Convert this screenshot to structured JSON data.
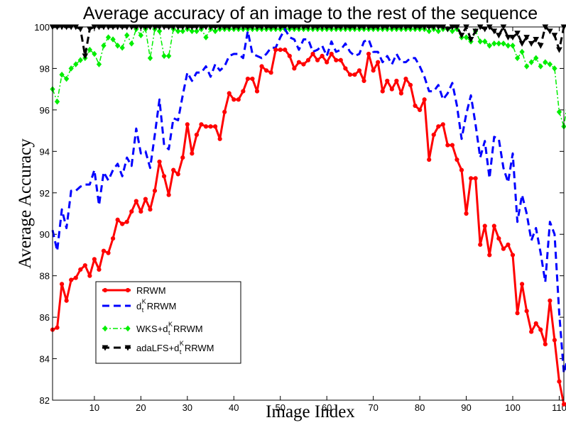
{
  "chart_data": {
    "type": "line",
    "title": "Average accuracy of an image to the rest of the sequence",
    "xlabel": "Image Index",
    "ylabel": "Average Accuracy",
    "xlim": [
      1,
      111
    ],
    "ylim": [
      82,
      100
    ],
    "xticks": [
      10,
      20,
      30,
      40,
      50,
      60,
      70,
      80,
      90,
      100,
      110
    ],
    "yticks": [
      82,
      84,
      86,
      88,
      90,
      92,
      94,
      96,
      98,
      100
    ],
    "grid": false,
    "legend_position": "bottom-left",
    "series": [
      {
        "name": "RRWM",
        "legend": {
          "base": "RRWM"
        },
        "color": "#ff0000",
        "style": "solid-dots",
        "y": [
          85.4,
          85.5,
          87.6,
          86.8,
          87.8,
          87.9,
          88.3,
          88.5,
          88.0,
          88.8,
          88.3,
          89.2,
          89.1,
          89.8,
          90.7,
          90.5,
          90.6,
          91.1,
          91.6,
          91.1,
          91.7,
          91.2,
          92.1,
          93.5,
          92.8,
          91.9,
          93.1,
          92.9,
          93.7,
          95.3,
          93.9,
          94.8,
          95.3,
          95.2,
          95.2,
          95.2,
          94.6,
          95.9,
          96.8,
          96.5,
          96.5,
          96.9,
          97.5,
          97.5,
          96.9,
          98.1,
          97.9,
          97.8,
          98.9,
          98.9,
          98.9,
          98.6,
          98.0,
          98.3,
          98.2,
          98.4,
          98.7,
          98.4,
          98.6,
          98.3,
          98.7,
          98.4,
          98.4,
          98.0,
          97.7,
          97.7,
          97.9,
          97.4,
          98.7,
          97.9,
          98.3,
          96.9,
          97.4,
          97.0,
          97.4,
          96.8,
          97.5,
          97.2,
          96.2,
          96.0,
          96.5,
          93.6,
          94.8,
          95.2,
          95.3,
          94.3,
          94.3,
          93.6,
          93.1,
          91.0,
          92.7,
          92.7,
          89.5,
          90.4,
          89.0,
          90.4,
          89.8,
          89.3,
          89.5,
          89.0,
          86.2,
          87.6,
          86.3,
          85.3,
          85.7,
          85.4,
          84.7,
          86.8,
          84.9,
          82.9,
          81.8,
          81.9
        ]
      },
      {
        "name": "d_t^K RRWM",
        "legend": {
          "base": "d",
          "sub": "t",
          "sup": "K",
          "rest": " RRWM"
        },
        "color": "#0000ff",
        "style": "dashed",
        "y": [
          90.2,
          89.2,
          91.2,
          90.3,
          92.1,
          92.1,
          92.3,
          92.4,
          92.4,
          93.1,
          91.4,
          93.0,
          92.6,
          93.1,
          93.4,
          92.8,
          93.7,
          93.3,
          95.1,
          93.9,
          94.0,
          93.2,
          94.8,
          96.5,
          94.3,
          94.1,
          95.6,
          95.5,
          96.7,
          97.8,
          97.4,
          97.8,
          97.8,
          98.1,
          97.6,
          98.2,
          97.9,
          98.1,
          98.6,
          98.7,
          98.7,
          98.5,
          99.8,
          98.7,
          98.6,
          98.5,
          98.7,
          99.0,
          99.0,
          99.5,
          99.9,
          99.5,
          99.4,
          98.9,
          99.4,
          99.4,
          98.8,
          98.9,
          99.1,
          98.6,
          99.3,
          98.8,
          98.9,
          99.2,
          98.8,
          98.6,
          98.7,
          99.3,
          99.4,
          98.8,
          98.8,
          98.3,
          98.6,
          98.2,
          98.7,
          98.3,
          98.3,
          98.5,
          98.5,
          98.1,
          97.6,
          96.9,
          96.9,
          97.2,
          96.5,
          96.8,
          97.3,
          96.2,
          94.6,
          95.8,
          96.7,
          95.3,
          93.7,
          94.5,
          92.7,
          94.7,
          94.6,
          93.2,
          92.5,
          93.9,
          90.6,
          91.9,
          91.0,
          89.7,
          90.3,
          89.1,
          87.7,
          90.6,
          90.0,
          86.2,
          83.3,
          84.2
        ]
      },
      {
        "name": "WKS+d_t^K RRWM",
        "legend": {
          "base": "WKS+d",
          "sub": "t",
          "sup": "K",
          "rest": "RRWM"
        },
        "color": "#00ee00",
        "style": "dashdot-diamonds",
        "y": [
          97.0,
          96.4,
          97.7,
          97.5,
          98.0,
          98.2,
          98.4,
          98.5,
          98.9,
          98.7,
          98.2,
          99.1,
          99.5,
          99.4,
          99.1,
          99.0,
          99.6,
          99.2,
          99.9,
          99.6,
          99.9,
          98.5,
          99.9,
          99.8,
          98.6,
          98.6,
          99.9,
          99.8,
          99.8,
          99.9,
          99.8,
          99.8,
          99.9,
          99.5,
          99.9,
          99.8,
          99.9,
          99.9,
          99.9,
          99.9,
          99.9,
          99.9,
          99.9,
          99.9,
          99.9,
          99.9,
          99.9,
          99.9,
          99.9,
          99.9,
          99.9,
          99.9,
          99.9,
          99.9,
          99.9,
          99.9,
          99.9,
          99.9,
          99.9,
          99.9,
          99.9,
          99.9,
          99.9,
          99.9,
          99.9,
          99.9,
          99.9,
          99.9,
          99.9,
          99.9,
          99.9,
          99.9,
          99.9,
          99.9,
          99.9,
          99.9,
          99.9,
          99.9,
          99.9,
          99.9,
          99.9,
          99.8,
          99.9,
          99.8,
          99.9,
          99.9,
          99.8,
          99.9,
          99.5,
          99.5,
          99.3,
          99.8,
          99.3,
          99.3,
          99.1,
          99.2,
          99.2,
          99.2,
          99.1,
          99.1,
          98.5,
          98.8,
          98.1,
          98.3,
          98.5,
          98.1,
          98.3,
          98.2,
          98.0,
          95.9,
          95.2,
          96.7
        ]
      },
      {
        "name": "adaLFS+d_t^K RRWM",
        "legend": {
          "base": "adaLFS+d",
          "sub": "t",
          "sup": "K",
          "rest": " RRWM"
        },
        "color": "#000000",
        "style": "dashed-triangles",
        "y": [
          100,
          100,
          100,
          100,
          100,
          100,
          99.9,
          98.6,
          99.9,
          100,
          100,
          100,
          100,
          100,
          100,
          100,
          100,
          100,
          100,
          100,
          100,
          100,
          100,
          100,
          100,
          100,
          100,
          100,
          100,
          100,
          100,
          100,
          100,
          100,
          100,
          100,
          100,
          100,
          100,
          100,
          100,
          100,
          100,
          100,
          100,
          100,
          100,
          100,
          100,
          100,
          100,
          100,
          100,
          100,
          100,
          100,
          100,
          100,
          100,
          100,
          100,
          100,
          100,
          100,
          100,
          100,
          100,
          100,
          100,
          100,
          100,
          100,
          100,
          100,
          100,
          100,
          100,
          100,
          100,
          100,
          100,
          100,
          100,
          100,
          100,
          99.9,
          100,
          100,
          99.6,
          100,
          99.4,
          99.8,
          100,
          99.9,
          100,
          99.8,
          99.6,
          100,
          99.5,
          99.5,
          99.7,
          99.2,
          99.5,
          99.2,
          99.4,
          99.1,
          100,
          99.8,
          99.6,
          98.9,
          100
        ]
      }
    ]
  }
}
